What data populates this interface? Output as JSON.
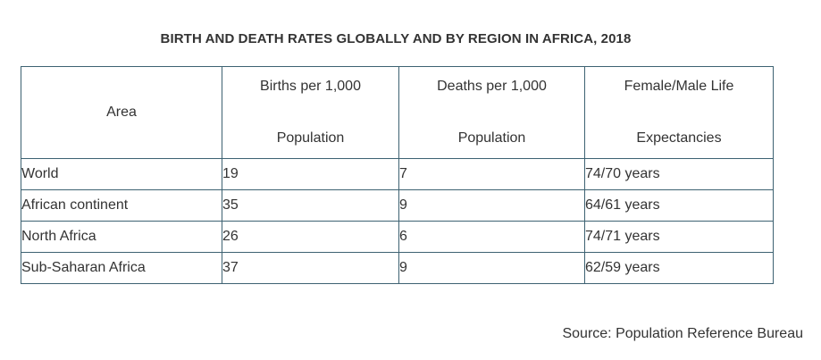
{
  "title": "BIRTH AND DEATH RATES GLOBALLY AND BY REGION IN AFRICA, 2018",
  "table": {
    "headers": [
      {
        "line1": "Area",
        "line2": ""
      },
      {
        "line1": "Births per 1,000",
        "line2": "Population"
      },
      {
        "line1": "Deaths per 1,000",
        "line2": "Population"
      },
      {
        "line1": "Female/Male Life",
        "line2": "Expectancies"
      }
    ],
    "rows": [
      {
        "area": "World",
        "births": "19",
        "deaths": "7",
        "life": "74/70 years"
      },
      {
        "area": "African continent",
        "births": "35",
        "deaths": "9",
        "life": "64/61 years"
      },
      {
        "area": "North Africa",
        "births": "26",
        "deaths": "6",
        "life": "74/71 years"
      },
      {
        "area": "Sub-Saharan Africa",
        "births": "37",
        "deaths": "9",
        "life": "62/59 years"
      }
    ]
  },
  "source": "Source: Population Reference Bureau",
  "colors": {
    "border": "#3d6272",
    "text": "#333333"
  }
}
